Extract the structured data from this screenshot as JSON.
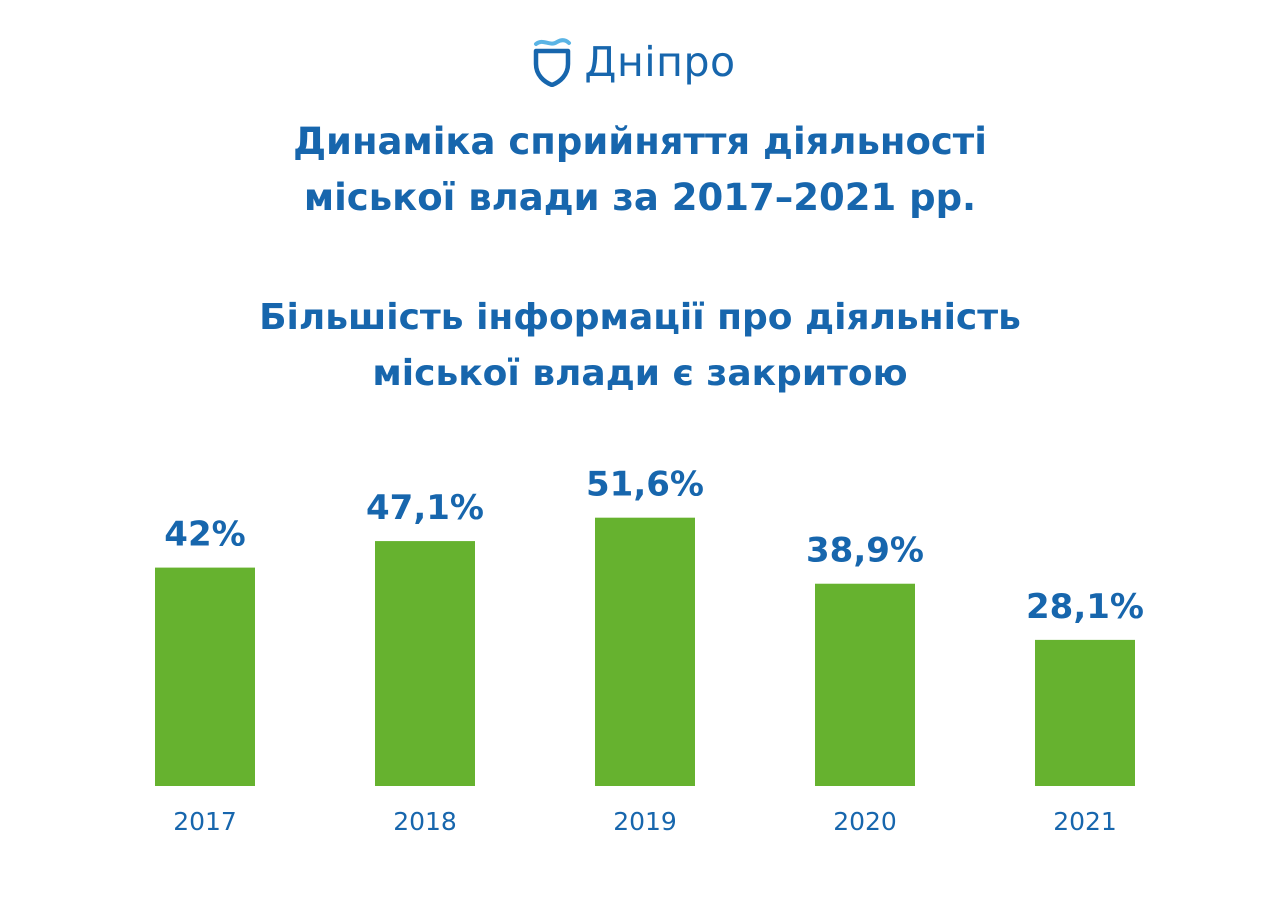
{
  "logo": {
    "text": "Дніпро",
    "icon": "shield-wave-icon",
    "color": "#1766ad",
    "wave_color": "#5ab4e5"
  },
  "title": {
    "line1": "Динаміка сприйняття діяльності",
    "line2": "міської влади за 2017–2021 рр."
  },
  "subtitle": {
    "line1": "Більшість інформації про діяльність",
    "line2": "міської влади є закритою"
  },
  "colors": {
    "bar": "#66b22f",
    "text": "#1766ad"
  },
  "chart_data": {
    "type": "bar",
    "categories": [
      "2017",
      "2018",
      "2019",
      "2020",
      "2021"
    ],
    "values": [
      42,
      47.1,
      51.6,
      38.9,
      28.1
    ],
    "value_labels": [
      "42%",
      "47,1%",
      "51,6%",
      "38,9%",
      "28,1%"
    ],
    "unit": "%",
    "grid": false,
    "legend": "none"
  }
}
